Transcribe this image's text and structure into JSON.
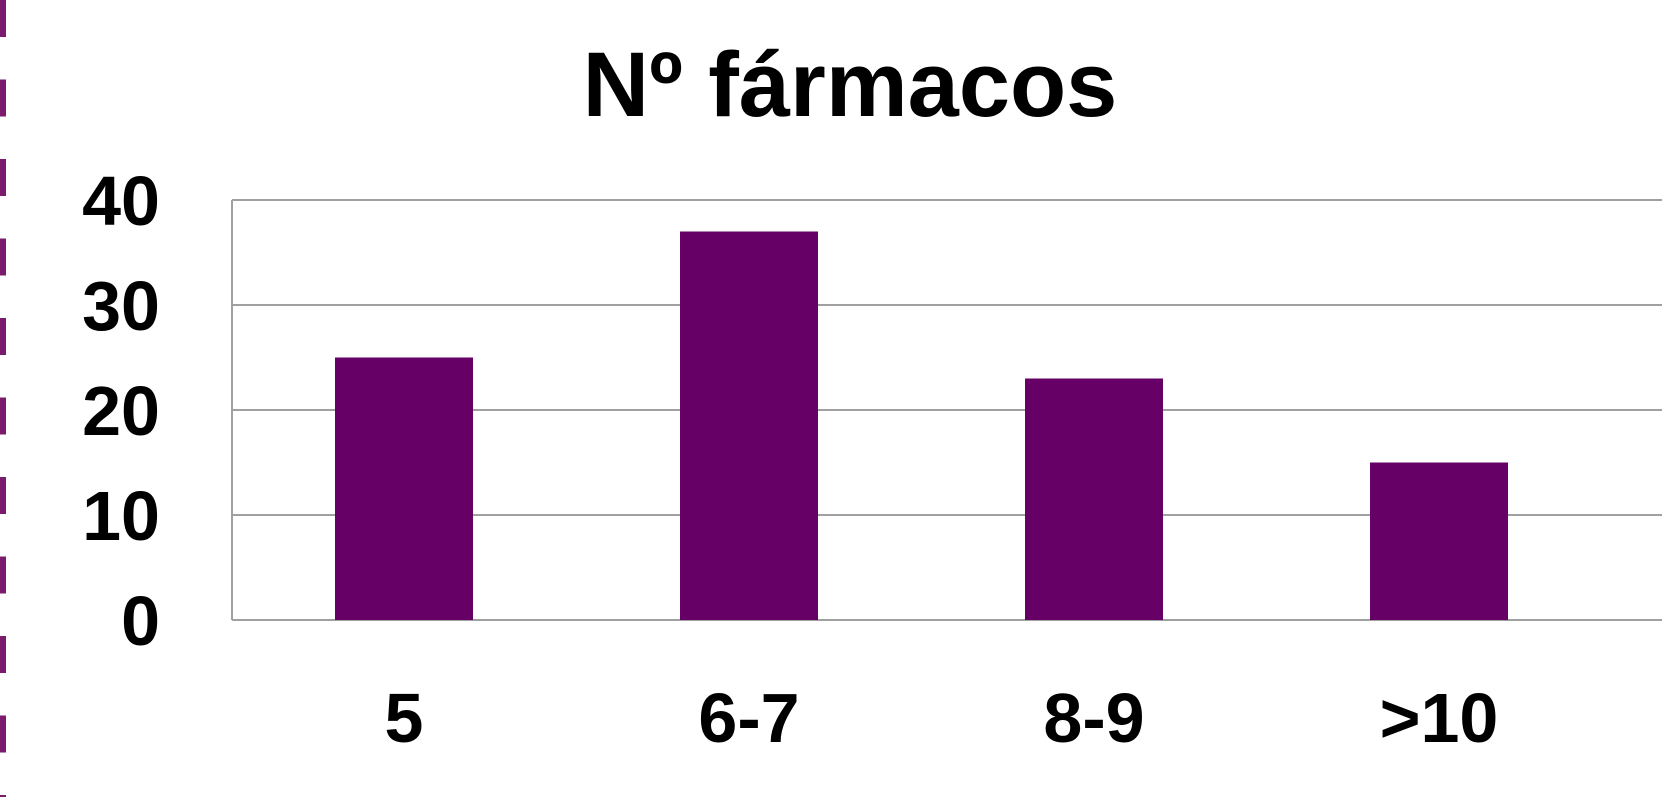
{
  "colors": {
    "bar": "#660066",
    "border_dash": "#7a1b6e",
    "gridline": "#a0a0a0",
    "text": "#000000"
  },
  "chart_data": {
    "type": "bar",
    "title": "Nº fármacos",
    "xlabel": "",
    "ylabel": "",
    "categories": [
      "5",
      "6-7",
      "8-9",
      ">10"
    ],
    "values": [
      25,
      37,
      23,
      15
    ],
    "ylim": [
      0,
      40
    ],
    "yticks": [
      "0",
      "10",
      "20",
      "30",
      "40"
    ],
    "grid": true,
    "legend": "none"
  }
}
